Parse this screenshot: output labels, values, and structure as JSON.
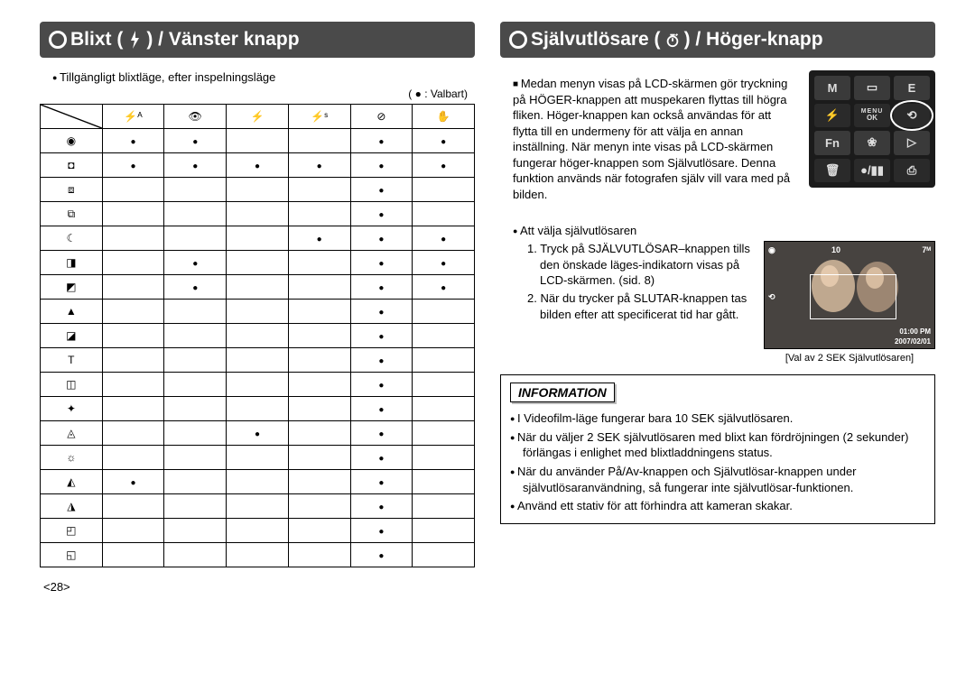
{
  "left": {
    "title_pre": "Blixt (",
    "title_post": ") / Vänster knapp",
    "sub": "Tillgängligt blixtläge, efter inspelningsläge",
    "legend": "( ● : Valbart)",
    "cols": [
      "⚡ᴬ",
      "👁",
      "⚡",
      "⚡ˢ",
      "⊘",
      "✋"
    ],
    "row_heads": [
      "◉",
      "◘",
      "⧈",
      "⧉",
      "☾",
      "◨",
      "◩",
      "▲",
      "◪",
      "T",
      "◫",
      "✦",
      "◬",
      "☼",
      "◭",
      "◮",
      "◰",
      "◱"
    ],
    "grid": [
      [
        1,
        1,
        0,
        0,
        1,
        1
      ],
      [
        1,
        1,
        1,
        1,
        1,
        1
      ],
      [
        0,
        0,
        0,
        0,
        1,
        0
      ],
      [
        0,
        0,
        0,
        0,
        1,
        0
      ],
      [
        0,
        0,
        0,
        1,
        1,
        1
      ],
      [
        0,
        1,
        0,
        0,
        1,
        1
      ],
      [
        0,
        1,
        0,
        0,
        1,
        1
      ],
      [
        0,
        0,
        0,
        0,
        1,
        0
      ],
      [
        0,
        0,
        0,
        0,
        1,
        0
      ],
      [
        0,
        0,
        0,
        0,
        1,
        0
      ],
      [
        0,
        0,
        0,
        0,
        1,
        0
      ],
      [
        0,
        0,
        0,
        0,
        1,
        0
      ],
      [
        0,
        0,
        1,
        0,
        1,
        0
      ],
      [
        0,
        0,
        0,
        0,
        1,
        0
      ],
      [
        1,
        0,
        0,
        0,
        1,
        0
      ],
      [
        0,
        0,
        0,
        0,
        1,
        0
      ],
      [
        0,
        0,
        0,
        0,
        1,
        0
      ],
      [
        0,
        0,
        0,
        0,
        1,
        0
      ]
    ],
    "page_no": "<28>"
  },
  "right": {
    "title_pre": "Självutlösare (",
    "title_post": ") / Höger-knapp",
    "para1": "Medan menyn visas på LCD-skärmen gör tryckning på HÖGER-knappen att muspekaren flyttas till högra fliken. Höger-knappen kan också användas för att flytta till en undermeny för att välja en annan inställning. När menyn inte visas på LCD-skärmen fungerar höger-knappen som Självutlösare. Denna funktion används när fotografen själv vill vara med på bilden.",
    "sub2": "Att välja självutlösaren",
    "step1": "1. Tryck på SJÄLVUTLÖSAR–knappen tills den önskade läges-indikatorn visas på LCD-skärmen. (sid. 8)",
    "step2": "2. När du trycker på SLUTAR-knappen tas bilden efter att specificerat tid har gått.",
    "lcd_caption": "[Val av 2 SEK Självutlösaren]",
    "lcd_time": "01:00 PM",
    "lcd_date": "2007/02/01",
    "info_head": "INFORMATION",
    "info_items": [
      "I Videofilm-läge fungerar bara 10 SEK självutlösaren.",
      "När du väljer 2 SEK självutlösaren med blixt kan fördröjningen (2 sekunder) förlängas i enlighet med blixtladdningens status.",
      "När du använder På/Av-knappen och Självutlösar-knappen under självutlösaranvändning, så fungerar inte självutlösar-funktionen.",
      "Använd ett stativ för att förhindra att kameran skakar."
    ],
    "keys": {
      "m": "M",
      "disp": "▭",
      "e": "E",
      "flash": "⚡",
      "menu": "MENU",
      "ok": "OK",
      "timer": "⟲",
      "fn": "Fn",
      "macro": "❀",
      "play": "▷",
      "trash": "🗑",
      "rec": "●/▮▮",
      "print": "⎙"
    }
  }
}
